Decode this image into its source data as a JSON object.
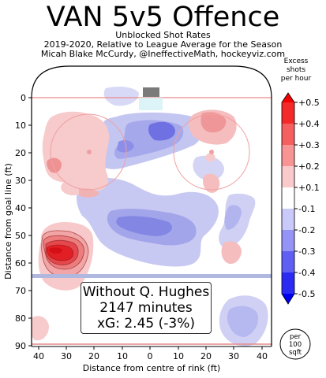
{
  "title": "VAN 5v5 Offence",
  "subtitle_lines": [
    "Unblocked Shot Rates",
    "2019-2020, Relative to League Average for the Season",
    "Micah Blake McCurdy, @IneffectiveMath, hockeyviz.com"
  ],
  "annotation": {
    "line1": "Without Q. Hughes",
    "line2": "2147 minutes",
    "line3": "xG: 2.45 (-3%)"
  },
  "colorbar": {
    "label_lines": [
      "Excess",
      "shots",
      "per hour"
    ],
    "ticks": [
      "+0.5",
      "+0.4",
      "+0.3",
      "+0.2",
      "+0.1",
      "-0.1",
      "-0.2",
      "-0.3",
      "-0.4",
      "-0.5"
    ],
    "unit_lines": [
      "per",
      "100",
      "sqft"
    ]
  },
  "colors": {
    "positive": "#e8262c",
    "negative": "#2a2aee",
    "rink_line_red": "#e98a8a",
    "blue_line": "#b0b8e0"
  },
  "chart_data": {
    "type": "heatmap",
    "xlabel": "Distance from centre of rink (ft)",
    "ylabel": "Distance from goal line (ft)",
    "xlim": [
      43,
      -43
    ],
    "ylim": [
      90,
      -11
    ],
    "x_ticks": [
      "40",
      "30",
      "20",
      "10",
      "0",
      "10",
      "20",
      "30",
      "40"
    ],
    "y_ticks": [
      "0",
      "10",
      "20",
      "30",
      "40",
      "50",
      "60",
      "70",
      "80",
      "90"
    ],
    "regions": [
      {
        "sign": "positive",
        "peak": "+0.5",
        "x_center": 32,
        "y_center": 56
      },
      {
        "sign": "positive",
        "x_center": 20,
        "y_center": 22
      },
      {
        "sign": "positive",
        "x_center": -20,
        "y_center": 11
      },
      {
        "sign": "negative",
        "x_center": 8,
        "y_center": 15
      },
      {
        "sign": "negative",
        "x_center": 5,
        "y_center": 52
      },
      {
        "sign": "negative",
        "x_center": -12,
        "y_center": 85
      }
    ]
  }
}
